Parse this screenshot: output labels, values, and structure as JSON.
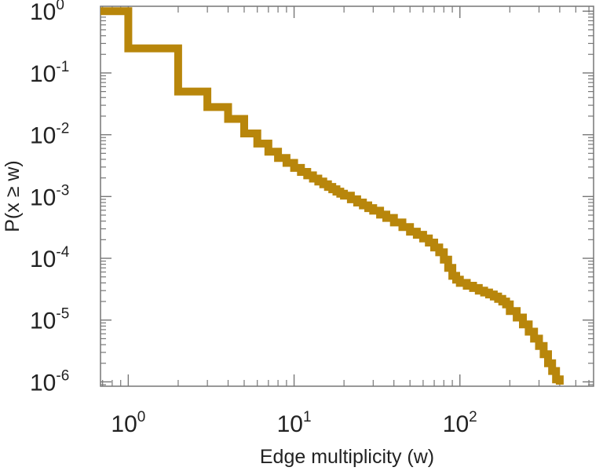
{
  "chart_data": {
    "type": "line",
    "subtype": "step",
    "x_scale": "log",
    "y_scale": "log",
    "xlabel": "Edge multiplicity (w)",
    "ylabel": "P(x ≥ w)",
    "xlim": [
      0.68,
      640
    ],
    "ylim": [
      8.5e-07,
      1.2
    ],
    "grid": false,
    "legend": "none",
    "x_ticks": [
      {
        "value": 1,
        "base": "10",
        "exp": "0"
      },
      {
        "value": 10,
        "base": "10",
        "exp": "1"
      },
      {
        "value": 100,
        "base": "10",
        "exp": "2"
      }
    ],
    "y_ticks": [
      {
        "value": 1,
        "base": "10",
        "exp": "0"
      },
      {
        "value": 0.1,
        "base": "10",
        "exp": "-1"
      },
      {
        "value": 0.01,
        "base": "10",
        "exp": "-2"
      },
      {
        "value": 0.001,
        "base": "10",
        "exp": "-3"
      },
      {
        "value": 0.0001,
        "base": "10",
        "exp": "-4"
      },
      {
        "value": 1e-05,
        "base": "10",
        "exp": "-5"
      },
      {
        "value": 1e-06,
        "base": "10",
        "exp": "-6"
      }
    ],
    "series": [
      {
        "color": "#b8860b",
        "x": [
          0.68,
          1,
          2,
          3,
          4,
          5,
          6,
          7,
          8,
          9,
          10,
          11,
          12,
          13,
          14,
          15,
          16,
          17,
          18,
          19,
          20,
          22,
          24,
          26,
          28,
          30,
          33,
          36,
          40,
          45,
          50,
          55,
          60,
          65,
          70,
          75,
          80,
          85,
          90,
          95,
          100,
          110,
          120,
          130,
          140,
          150,
          160,
          170,
          180,
          190,
          200,
          220,
          240,
          260,
          280,
          300,
          320,
          340,
          360,
          380,
          400
        ],
        "y": [
          1,
          0.25,
          0.05,
          0.028,
          0.018,
          0.0105,
          0.0072,
          0.0053,
          0.0042,
          0.0035,
          0.0029,
          0.0025,
          0.0022,
          0.00195,
          0.00175,
          0.00158,
          0.00143,
          0.00131,
          0.0012,
          0.00111,
          0.00103,
          0.0009,
          0.0008,
          0.00072,
          0.00065,
          0.00059,
          0.00051,
          0.00045,
          0.00038,
          0.00032,
          0.00027,
          0.00024,
          0.00021,
          0.00018,
          0.00015,
          0.000125,
          9.5e-05,
          7e-05,
          5.2e-05,
          4.5e-05,
          4e-05,
          3.6e-05,
          3.3e-05,
          3e-05,
          2.8e-05,
          2.6e-05,
          2.4e-05,
          2.2e-05,
          2e-05,
          1.8e-05,
          1.4e-05,
          1.1e-05,
          8.5e-06,
          6.5e-06,
          5e-06,
          3.8e-06,
          2.8e-06,
          2e-06,
          1.5e-06,
          1.1e-06,
          9e-07
        ]
      }
    ]
  }
}
